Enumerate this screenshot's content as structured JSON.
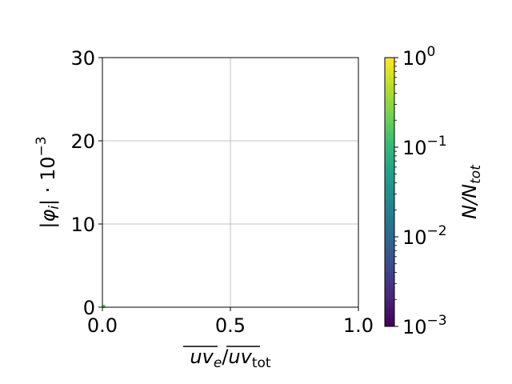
{
  "chart_data": {
    "type": "heatmap",
    "title": "",
    "xlabel": "uv_e / uv_tot",
    "xlabel_parts": {
      "num": "uv",
      "num_sub": "e",
      "slash": "/",
      "den": "uv",
      "den_sub": "tot"
    },
    "ylabel": "|φ_i| · 10^-3",
    "ylabel_parts": {
      "main": "|φ",
      "sub": "i",
      "tail": "| · 10",
      "sup": "−3"
    },
    "xlim": [
      0.0,
      1.0
    ],
    "ylim": [
      0,
      30
    ],
    "xticks": [
      {
        "value": 0.0,
        "label": "0.0"
      },
      {
        "value": 0.5,
        "label": "0.5"
      },
      {
        "value": 1.0,
        "label": "1.0"
      }
    ],
    "yticks": [
      {
        "value": 0,
        "label": "0"
      },
      {
        "value": 10,
        "label": "10"
      },
      {
        "value": 20,
        "label": "20"
      },
      {
        "value": 30,
        "label": "30"
      }
    ],
    "grid": true,
    "points": [
      {
        "x": 0.005,
        "y": 0.1,
        "color": "#5ec962"
      }
    ],
    "colorbar": {
      "label": "N/N_tot",
      "label_parts": {
        "main": "N/N",
        "sub": "tot"
      },
      "scale": "log",
      "range": [
        0.001,
        1
      ],
      "colormap": "viridis",
      "colormap_stops": [
        "#440154",
        "#482878",
        "#3e4989",
        "#31688e",
        "#26828e",
        "#1f9e89",
        "#35b779",
        "#6ece58",
        "#b5de2b",
        "#fde725"
      ],
      "ticks": [
        {
          "value": 1,
          "base": "10",
          "exp": "0"
        },
        {
          "value": 0.1,
          "base": "10",
          "exp": "−1"
        },
        {
          "value": 0.01,
          "base": "10",
          "exp": "−2"
        },
        {
          "value": 0.001,
          "base": "10",
          "exp": "−3"
        }
      ]
    }
  }
}
